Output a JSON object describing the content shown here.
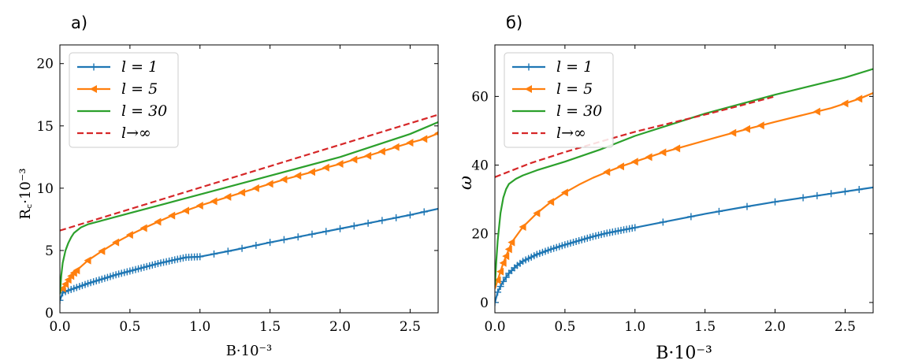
{
  "chart_data": [
    {
      "type": "line",
      "panel_label": "а)",
      "xlabel": "B·10⁻³",
      "ylabel": "R꜀·10⁻³",
      "xlim": [
        0.0,
        2.7
      ],
      "ylim": [
        0,
        21.5
      ],
      "xticks": [
        0.0,
        0.5,
        1.0,
        1.5,
        2.0,
        2.5
      ],
      "xtick_labels": [
        "0.0",
        "0.5",
        "1.0",
        "1.5",
        "2.0",
        "2.5"
      ],
      "yticks": [
        0,
        5,
        10,
        15,
        20
      ],
      "ytick_labels": [
        "0",
        "5",
        "10",
        "15",
        "20"
      ],
      "grid": false,
      "legend_position": "top-left",
      "series": [
        {
          "name": "l = 1",
          "color": "#1f77b4",
          "marker": "plus",
          "dashed": false,
          "x": [
            0.0,
            0.02,
            0.05,
            0.1,
            0.2,
            0.3,
            0.4,
            0.5,
            0.6,
            0.7,
            0.8,
            0.9,
            1.0,
            1.25,
            1.5,
            1.75,
            2.0,
            2.25,
            2.5,
            2.7
          ],
          "y": [
            1.0,
            1.6,
            1.75,
            1.95,
            2.35,
            2.7,
            3.05,
            3.35,
            3.65,
            3.95,
            4.2,
            4.45,
            4.5,
            5.05,
            5.65,
            6.2,
            6.75,
            7.3,
            7.85,
            8.35
          ],
          "marker_x": [
            0.0,
            0.02,
            0.04,
            0.06,
            0.08,
            0.1,
            0.12,
            0.14,
            0.16,
            0.18,
            0.2,
            0.22,
            0.24,
            0.26,
            0.28,
            0.3,
            0.32,
            0.34,
            0.36,
            0.38,
            0.4,
            0.42,
            0.44,
            0.46,
            0.48,
            0.5,
            0.52,
            0.54,
            0.56,
            0.58,
            0.6,
            0.62,
            0.64,
            0.66,
            0.68,
            0.7,
            0.72,
            0.74,
            0.76,
            0.78,
            0.8,
            0.82,
            0.84,
            0.86,
            0.88,
            0.9,
            0.92,
            0.94,
            0.96,
            0.98,
            1.0,
            1.1,
            1.2,
            1.3,
            1.4,
            1.5,
            1.6,
            1.7,
            1.8,
            1.9,
            2.0,
            2.1,
            2.2,
            2.3,
            2.4,
            2.5,
            2.6
          ]
        },
        {
          "name": "l = 5",
          "color": "#ff7f0e",
          "marker": "triangle-left",
          "dashed": false,
          "x": [
            0.0,
            0.02,
            0.04,
            0.06,
            0.08,
            0.1,
            0.12,
            0.2,
            0.3,
            0.4,
            0.5,
            0.6,
            0.7,
            0.8,
            0.9,
            1.0,
            1.1,
            1.2,
            1.3,
            1.4,
            1.5,
            1.6,
            1.7,
            1.8,
            1.9,
            2.0,
            2.1,
            2.2,
            2.3,
            2.4,
            2.5,
            2.6,
            2.7
          ],
          "y": [
            1.6,
            1.95,
            2.3,
            2.65,
            2.95,
            3.2,
            3.4,
            4.2,
            4.95,
            5.65,
            6.25,
            6.8,
            7.3,
            7.8,
            8.2,
            8.6,
            8.95,
            9.3,
            9.65,
            10.0,
            10.35,
            10.7,
            11.0,
            11.3,
            11.65,
            11.95,
            12.3,
            12.6,
            12.95,
            13.3,
            13.65,
            13.95,
            14.4
          ],
          "marker_x": [
            0.02,
            0.04,
            0.06,
            0.08,
            0.1,
            0.12,
            0.2,
            0.3,
            0.4,
            0.5,
            0.6,
            0.7,
            0.8,
            0.9,
            1.0,
            1.1,
            1.2,
            1.3,
            1.4,
            1.5,
            1.6,
            1.7,
            1.8,
            1.9,
            2.0,
            2.1,
            2.2,
            2.3,
            2.4,
            2.5,
            2.6,
            2.7
          ]
        },
        {
          "name": "l = 30",
          "color": "#2ca02c",
          "marker": "none",
          "dashed": false,
          "x": [
            0.0,
            0.01,
            0.02,
            0.04,
            0.06,
            0.08,
            0.1,
            0.15,
            0.2,
            0.3,
            0.5,
            0.75,
            1.0,
            1.5,
            2.0,
            2.5,
            2.7
          ],
          "y": [
            1.5,
            3.0,
            4.0,
            5.0,
            5.6,
            6.05,
            6.4,
            6.85,
            7.1,
            7.4,
            8.0,
            8.75,
            9.5,
            11.0,
            12.5,
            14.35,
            15.3
          ],
          "marker_x": []
        },
        {
          "name": "l→∞",
          "color": "#d62728",
          "marker": "none",
          "dashed": true,
          "x": [
            0.0,
            2.7
          ],
          "y": [
            6.6,
            15.9
          ],
          "marker_x": []
        }
      ]
    },
    {
      "type": "line",
      "panel_label": "б)",
      "xlabel": "B·10⁻³",
      "ylabel": "ω",
      "xlim": [
        0.0,
        2.7
      ],
      "ylim": [
        -3,
        75
      ],
      "xticks": [
        0.0,
        0.5,
        1.0,
        1.5,
        2.0,
        2.5
      ],
      "xtick_labels": [
        "0.0",
        "0.5",
        "1.0",
        "1.5",
        "2.0",
        "2.5"
      ],
      "yticks": [
        0,
        20,
        40,
        60
      ],
      "ytick_labels": [
        "0",
        "20",
        "40",
        "60"
      ],
      "grid": false,
      "legend_position": "top-left",
      "series": [
        {
          "name": "l = 1",
          "color": "#1f77b4",
          "marker": "plus",
          "dashed": false,
          "x": [
            0.0,
            0.02,
            0.05,
            0.1,
            0.15,
            0.2,
            0.3,
            0.4,
            0.5,
            0.6,
            0.7,
            0.8,
            0.9,
            1.0,
            1.25,
            1.5,
            1.75,
            2.0,
            2.25,
            2.5,
            2.7
          ],
          "y": [
            0.0,
            3.0,
            5.5,
            8.5,
            10.5,
            12.0,
            14.0,
            15.5,
            16.8,
            18.0,
            19.2,
            20.2,
            21.0,
            21.8,
            23.8,
            25.8,
            27.6,
            29.3,
            30.8,
            32.3,
            33.5
          ],
          "marker_x": [
            0.0,
            0.02,
            0.04,
            0.06,
            0.08,
            0.1,
            0.12,
            0.14,
            0.16,
            0.18,
            0.2,
            0.22,
            0.24,
            0.26,
            0.28,
            0.3,
            0.32,
            0.34,
            0.36,
            0.38,
            0.4,
            0.42,
            0.44,
            0.46,
            0.48,
            0.5,
            0.52,
            0.54,
            0.56,
            0.58,
            0.6,
            0.62,
            0.64,
            0.66,
            0.68,
            0.7,
            0.72,
            0.74,
            0.76,
            0.78,
            0.8,
            0.82,
            0.84,
            0.86,
            0.88,
            0.9,
            0.92,
            0.94,
            0.96,
            0.98,
            1.0,
            1.2,
            1.4,
            1.6,
            1.8,
            2.0,
            2.2,
            2.3,
            2.4,
            2.5,
            2.6
          ]
        },
        {
          "name": "l = 5",
          "color": "#ff7f0e",
          "marker": "triangle-left",
          "dashed": false,
          "x": [
            0.0,
            0.02,
            0.04,
            0.06,
            0.08,
            0.1,
            0.12,
            0.2,
            0.3,
            0.4,
            0.5,
            0.6,
            0.7,
            0.8,
            0.9,
            1.0,
            1.2,
            1.4,
            1.6,
            1.8,
            2.0,
            2.2,
            2.4,
            2.6,
            2.7
          ],
          "y": [
            4.0,
            6.5,
            9.0,
            11.5,
            13.5,
            15.5,
            17.5,
            22.0,
            26.0,
            29.3,
            32.0,
            34.3,
            36.3,
            38.0,
            39.6,
            41.0,
            43.7,
            46.0,
            48.3,
            50.5,
            52.6,
            54.6,
            56.6,
            59.3,
            61.0
          ],
          "marker_x": [
            0.02,
            0.04,
            0.06,
            0.08,
            0.1,
            0.12,
            0.2,
            0.3,
            0.4,
            0.5,
            0.8,
            0.9,
            1.0,
            1.1,
            1.2,
            1.3,
            1.7,
            1.8,
            1.9,
            2.3,
            2.5,
            2.6
          ]
        },
        {
          "name": "l = 30",
          "color": "#2ca02c",
          "marker": "none",
          "dashed": false,
          "x": [
            0.0,
            0.01,
            0.02,
            0.04,
            0.06,
            0.08,
            0.1,
            0.15,
            0.2,
            0.3,
            0.5,
            0.75,
            1.0,
            1.5,
            2.0,
            2.5,
            2.7
          ],
          "y": [
            5.0,
            12.0,
            18.0,
            26.0,
            30.5,
            33.0,
            34.5,
            36.0,
            37.0,
            38.5,
            41.0,
            44.5,
            48.5,
            55.0,
            60.5,
            65.5,
            68.0
          ],
          "marker_x": []
        },
        {
          "name": "l→∞",
          "color": "#d62728",
          "marker": "none",
          "dashed": true,
          "x": [
            0.0,
            0.25,
            0.5,
            0.75,
            1.0,
            1.25,
            1.5,
            1.75,
            2.0
          ],
          "y": [
            36.5,
            40.5,
            43.8,
            46.8,
            49.7,
            52.2,
            54.7,
            57.3,
            60.0
          ],
          "marker_x": []
        }
      ]
    }
  ]
}
